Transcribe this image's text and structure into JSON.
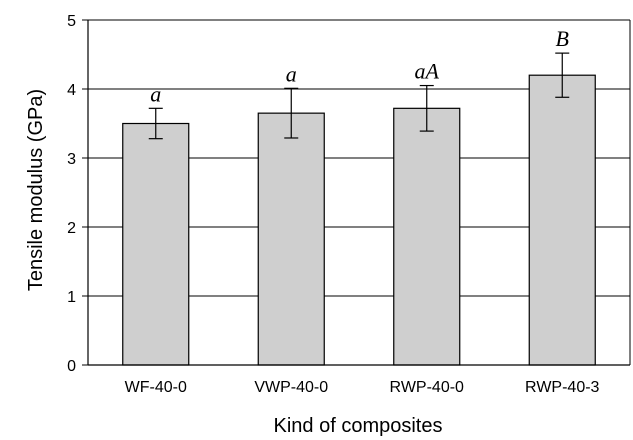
{
  "chart_data": {
    "type": "bar",
    "title": "",
    "xlabel": "Kind of composites",
    "ylabel": "Tensile modulus (GPa)",
    "categories": [
      "WF-40-0",
      "VWP-40-0",
      "RWP-40-0",
      "RWP-40-3"
    ],
    "values": [
      3.5,
      3.65,
      3.72,
      4.2
    ],
    "error": [
      0.22,
      0.36,
      0.33,
      0.32
    ],
    "significance_labels": [
      "a",
      "a",
      "aA",
      "B"
    ],
    "ylim": [
      0,
      5
    ],
    "yticks": [
      "0",
      "1",
      "2",
      "3",
      "4",
      "5"
    ],
    "grid": true,
    "legend": "none",
    "bar_color": "#cfcfcf",
    "bar_edge_color": "#000000"
  }
}
